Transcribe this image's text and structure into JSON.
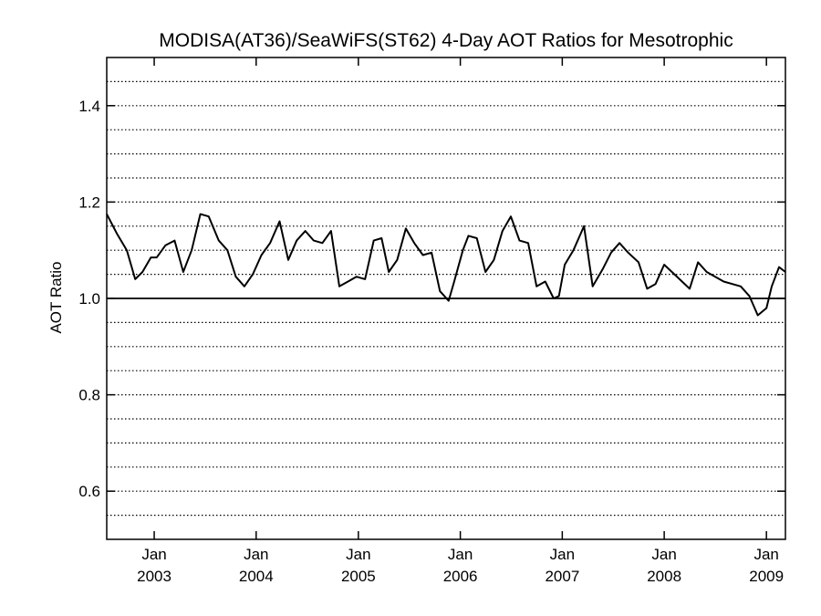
{
  "chart_data": {
    "type": "line",
    "title": "MODISA(AT36)/SeaWiFS(ST62) 4-Day AOT Ratios for Mesotrophic",
    "xlabel": "",
    "ylabel": "AOT Ratio",
    "xlim": [
      "2002-07-15",
      "2009-03-10"
    ],
    "ylim": [
      0.5,
      1.5
    ],
    "y_ticks": [
      {
        "value": 0.6,
        "label": "0.6"
      },
      {
        "value": 0.8,
        "label": "0.8"
      },
      {
        "value": 1.0,
        "label": "1.0"
      },
      {
        "value": 1.2,
        "label": "1.2"
      },
      {
        "value": 1.4,
        "label": "1.4"
      }
    ],
    "x_ticks": [
      {
        "date": "2003-01-01",
        "month": "Jan",
        "year": "2003"
      },
      {
        "date": "2004-01-01",
        "month": "Jan",
        "year": "2004"
      },
      {
        "date": "2005-01-01",
        "month": "Jan",
        "year": "2005"
      },
      {
        "date": "2006-01-01",
        "month": "Jan",
        "year": "2006"
      },
      {
        "date": "2007-01-01",
        "month": "Jan",
        "year": "2007"
      },
      {
        "date": "2008-01-01",
        "month": "Jan",
        "year": "2008"
      },
      {
        "date": "2009-01-01",
        "month": "Jan",
        "year": "2009"
      }
    ],
    "grid": {
      "horizontal_dotted_step": 0.05,
      "on": true
    },
    "reference_line": 1.0,
    "series": [
      {
        "x": [
          "2002-07-15",
          "2002-08-20",
          "2002-09-25",
          "2002-10-25",
          "2002-11-20",
          "2002-12-20",
          "2003-01-10",
          "2003-02-10",
          "2003-03-15",
          "2003-04-15",
          "2003-05-15",
          "2003-06-15",
          "2003-07-15",
          "2003-08-20",
          "2003-09-20",
          "2003-10-20",
          "2003-11-20",
          "2003-12-20",
          "2004-01-20",
          "2004-02-20",
          "2004-03-25",
          "2004-04-25",
          "2004-05-25",
          "2004-06-25",
          "2004-07-25",
          "2004-08-25",
          "2004-09-25",
          "2004-10-25",
          "2004-11-25",
          "2004-12-25",
          "2005-01-25",
          "2005-02-25",
          "2005-03-25",
          "2005-04-20",
          "2005-05-20",
          "2005-06-20",
          "2005-07-20",
          "2005-08-20",
          "2005-09-20",
          "2005-10-20",
          "2005-11-20",
          "2005-12-10",
          "2006-01-10",
          "2006-01-30",
          "2006-03-01",
          "2006-04-01",
          "2006-05-01",
          "2006-06-01",
          "2006-07-01",
          "2006-08-01",
          "2006-09-01",
          "2006-10-01",
          "2006-11-01",
          "2006-12-01",
          "2006-12-20",
          "2007-01-10",
          "2007-02-10",
          "2007-03-20",
          "2007-04-20",
          "2007-05-25",
          "2007-06-25",
          "2007-07-25",
          "2007-08-25",
          "2007-10-01",
          "2007-11-01",
          "2007-12-01",
          "2008-01-01",
          "2008-04-01",
          "2008-05-01",
          "2008-06-01",
          "2008-08-01",
          "2008-10-01",
          "2008-11-01",
          "2008-12-01",
          "2009-01-01",
          "2009-01-20",
          "2009-02-15",
          "2009-03-10"
        ],
        "y": [
          1.175,
          1.135,
          1.1,
          1.04,
          1.055,
          1.085,
          1.085,
          1.11,
          1.12,
          1.055,
          1.1,
          1.175,
          1.17,
          1.12,
          1.1,
          1.045,
          1.025,
          1.05,
          1.09,
          1.115,
          1.16,
          1.08,
          1.12,
          1.14,
          1.12,
          1.115,
          1.14,
          1.025,
          1.035,
          1.045,
          1.04,
          1.12,
          1.125,
          1.055,
          1.08,
          1.145,
          1.115,
          1.09,
          1.095,
          1.015,
          0.995,
          1.035,
          1.1,
          1.13,
          1.125,
          1.055,
          1.08,
          1.14,
          1.17,
          1.12,
          1.115,
          1.025,
          1.035,
          1.0,
          1.005,
          1.07,
          1.1,
          1.15,
          1.025,
          1.06,
          1.095,
          1.115,
          1.095,
          1.075,
          1.02,
          1.03,
          1.07,
          1.02,
          1.075,
          1.055,
          1.035,
          1.025,
          1.005,
          0.965,
          0.98,
          1.025,
          1.065,
          1.055
        ]
      }
    ]
  }
}
